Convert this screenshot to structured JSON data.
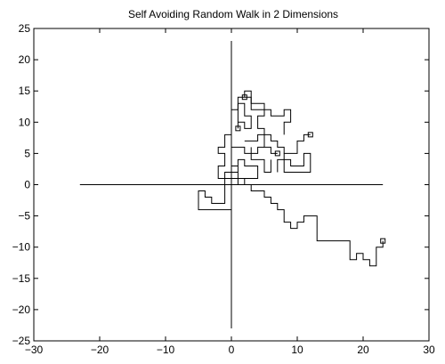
{
  "chart_data": {
    "type": "line",
    "title": "Self Avoiding Random Walk in 2 Dimensions",
    "xlabel": "",
    "ylabel": "",
    "xlim": [
      -30,
      30
    ],
    "ylim": [
      -25,
      25
    ],
    "x_ticks": [
      -30,
      -20,
      -10,
      0,
      10,
      20,
      30
    ],
    "y_ticks": [
      -25,
      -20,
      -15,
      -10,
      -5,
      0,
      5,
      10,
      15,
      20,
      25
    ],
    "grid": false,
    "legend": "none",
    "line_color": "#000000",
    "reference_lines": [
      {
        "x": [
          -23,
          23
        ],
        "y": [
          0,
          0
        ]
      },
      {
        "x": [
          0,
          0
        ],
        "y": [
          -23,
          23
        ]
      }
    ],
    "walk": {
      "points": [
        [
          23,
          -9
        ],
        [
          23,
          -10
        ],
        [
          22,
          -10
        ],
        [
          22,
          -13
        ],
        [
          21,
          -13
        ],
        [
          21,
          -12
        ],
        [
          20,
          -12
        ],
        [
          20,
          -11
        ],
        [
          19,
          -11
        ],
        [
          19,
          -12
        ],
        [
          18,
          -12
        ],
        [
          18,
          -9
        ],
        [
          13,
          -9
        ],
        [
          13,
          -5
        ],
        [
          11,
          -5
        ],
        [
          11,
          -6
        ],
        [
          10,
          -6
        ],
        [
          10,
          -7
        ],
        [
          9,
          -7
        ],
        [
          9,
          -6
        ],
        [
          8,
          -6
        ],
        [
          8,
          -4
        ],
        [
          7,
          -4
        ],
        [
          7,
          -3
        ],
        [
          6,
          -3
        ],
        [
          6,
          -2
        ],
        [
          5,
          -2
        ],
        [
          5,
          -1
        ],
        [
          3,
          -1
        ],
        [
          3,
          0
        ],
        [
          2,
          0
        ],
        [
          2,
          1
        ],
        [
          0,
          1
        ],
        [
          0,
          -4
        ],
        [
          -5,
          -4
        ],
        [
          -5,
          -1
        ],
        [
          -4,
          -1
        ],
        [
          -4,
          -2
        ],
        [
          -3,
          -2
        ],
        [
          -3,
          -3
        ],
        [
          -1,
          -3
        ],
        [
          -1,
          1
        ],
        [
          -2,
          1
        ],
        [
          -2,
          3
        ],
        [
          -1,
          3
        ],
        [
          -1,
          5
        ],
        [
          -2,
          5
        ],
        [
          -2,
          6
        ],
        [
          -1,
          6
        ],
        [
          -1,
          8
        ],
        [
          0,
          8
        ],
        [
          0,
          12
        ],
        [
          1,
          12
        ],
        [
          1,
          14
        ],
        [
          3,
          14
        ],
        [
          3,
          12
        ],
        [
          5,
          12
        ],
        [
          5,
          11
        ],
        [
          4,
          11
        ],
        [
          4,
          9
        ],
        [
          5,
          9
        ],
        [
          5,
          6
        ],
        [
          6,
          6
        ],
        [
          6,
          5
        ],
        [
          7,
          5
        ]
      ],
      "start_marker": [
        7,
        5
      ],
      "end_marker": [
        23,
        -9
      ]
    },
    "walks_extra": [
      [
        [
          2,
          14
        ],
        [
          2,
          15
        ],
        [
          3,
          15
        ],
        [
          3,
          13
        ],
        [
          5,
          13
        ],
        [
          5,
          12
        ],
        [
          6,
          12
        ],
        [
          6,
          11
        ],
        [
          8,
          11
        ],
        [
          8,
          12
        ],
        [
          9,
          12
        ],
        [
          9,
          10
        ],
        [
          8,
          10
        ],
        [
          8,
          8
        ]
      ],
      [
        [
          1,
          9
        ],
        [
          1,
          10
        ],
        [
          2,
          10
        ],
        [
          2,
          9
        ],
        [
          3,
          9
        ],
        [
          3,
          11
        ],
        [
          2,
          11
        ],
        [
          2,
          13
        ],
        [
          1,
          13
        ],
        [
          1,
          10
        ]
      ],
      [
        [
          12,
          8
        ],
        [
          11,
          8
        ],
        [
          11,
          7
        ],
        [
          10,
          7
        ],
        [
          10,
          5
        ],
        [
          8,
          5
        ],
        [
          8,
          2
        ],
        [
          12,
          2
        ],
        [
          12,
          5
        ],
        [
          11,
          5
        ],
        [
          11,
          3
        ],
        [
          9,
          3
        ],
        [
          9,
          4
        ],
        [
          7,
          4
        ],
        [
          7,
          2
        ]
      ],
      [
        [
          2,
          7
        ],
        [
          4,
          7
        ],
        [
          4,
          8
        ],
        [
          6,
          8
        ],
        [
          6,
          7
        ],
        [
          7,
          7
        ],
        [
          7,
          6
        ],
        [
          8,
          6
        ],
        [
          8,
          5
        ]
      ],
      [
        [
          0,
          0
        ],
        [
          1,
          0
        ],
        [
          1,
          4
        ],
        [
          2,
          4
        ],
        [
          2,
          3
        ],
        [
          4,
          3
        ],
        [
          4,
          1
        ],
        [
          2,
          1
        ]
      ],
      [
        [
          1,
          3
        ],
        [
          0,
          3
        ],
        [
          0,
          6
        ],
        [
          2,
          6
        ],
        [
          2,
          5
        ],
        [
          4,
          5
        ],
        [
          4,
          6
        ],
        [
          5,
          6
        ]
      ],
      [
        [
          0,
          1
        ],
        [
          -1,
          1
        ],
        [
          -1,
          2
        ],
        [
          1,
          2
        ]
      ],
      [
        [
          3,
          6
        ],
        [
          3,
          4
        ],
        [
          5,
          4
        ],
        [
          5,
          2
        ],
        [
          6,
          2
        ],
        [
          6,
          4
        ]
      ]
    ],
    "markers": [
      [
        2,
        14
      ],
      [
        1,
        9
      ],
      [
        7,
        5
      ],
      [
        12,
        8
      ],
      [
        23,
        -9
      ]
    ]
  }
}
